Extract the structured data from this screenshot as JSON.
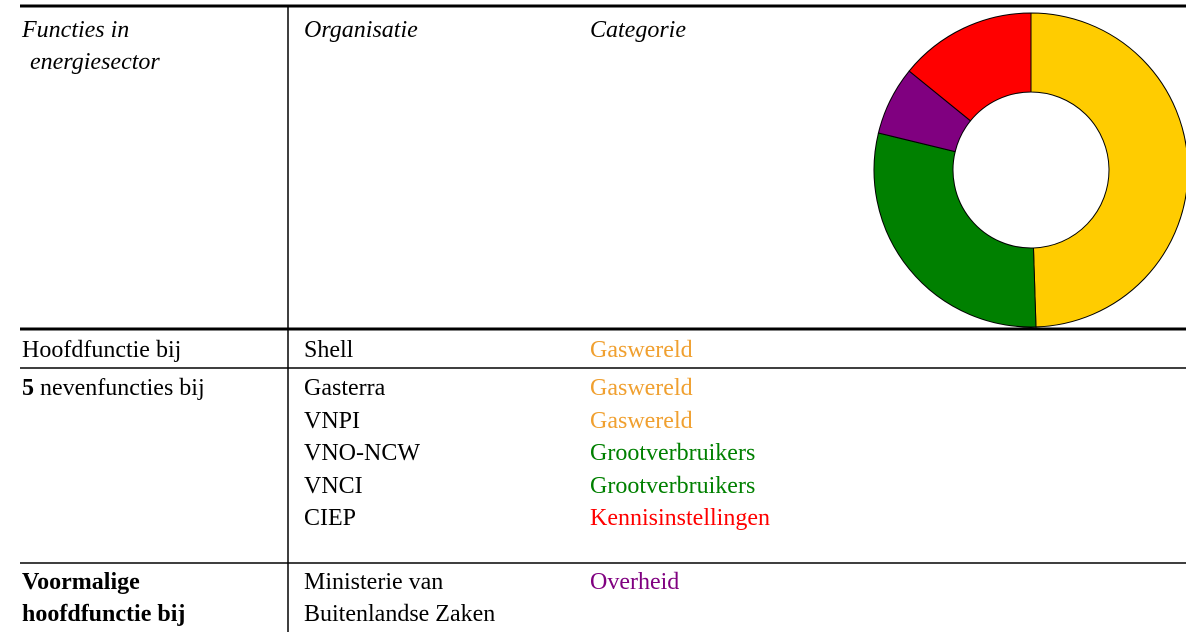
{
  "table": {
    "header": {
      "functions": "Functies in energiesector",
      "organisation": "Organisatie",
      "category": "Categorie"
    },
    "rows": [
      {
        "function": "Hoofdfunctie bij",
        "entries": [
          {
            "organisation": "Shell",
            "category": "Gaswereld",
            "color": "#f0a030"
          }
        ]
      },
      {
        "count": "5",
        "function": "nevenfuncties bij",
        "entries": [
          {
            "organisation": "Gasterra",
            "category": "Gaswereld",
            "color": "#f0a030"
          },
          {
            "organisation": "VNPI",
            "category": "Gaswereld",
            "color": "#f0a030"
          },
          {
            "organisation": "VNO-NCW",
            "category": "Grootverbruikers",
            "color": "#008000"
          },
          {
            "organisation": "VNCI",
            "category": "Grootverbruikers",
            "color": "#008000"
          },
          {
            "organisation": "CIEP",
            "category": "Kennisinstellingen",
            "color": "#ff0000"
          }
        ]
      },
      {
        "function": "Voormalige hoofdfunctie bij",
        "bold": true,
        "entries": [
          {
            "organisation": "Ministerie van Buitenlandse Zaken",
            "category": "Overheid",
            "color": "#800080"
          }
        ]
      }
    ]
  },
  "chart_data": {
    "type": "donut",
    "values": [
      49,
      29,
      7,
      14
    ],
    "colors": [
      "#ffcc00",
      "#008000",
      "#800080",
      "#ff0000"
    ]
  }
}
